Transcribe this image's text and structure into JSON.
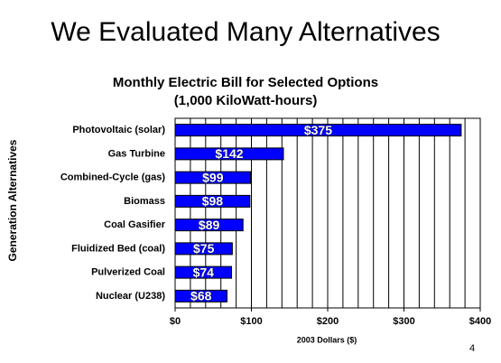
{
  "slide_title": "We Evaluated Many Alternatives",
  "page_number": "4",
  "chart_data": {
    "type": "hbar",
    "title": "Monthly Electric Bill for Selected Options",
    "subtitle": "(1,000 KiloWatt-hours)",
    "x_label": "2003 Dollars ($)",
    "y_label": "Generation Alternatives",
    "categories": [
      "Photovoltaic (solar)",
      "Gas Turbine",
      "Combined-Cycle (gas)",
      "Biomass",
      "Coal Gasifier",
      "Fluidized Bed (coal)",
      "Pulverized Coal",
      "Nuclear (U238)"
    ],
    "values": [
      375,
      142,
      99,
      98,
      89,
      75,
      74,
      68
    ],
    "value_labels": [
      "$375",
      "$142",
      "$99",
      "$98",
      "$89",
      "$75",
      "$74",
      "$68"
    ],
    "color": "#0000ff",
    "xlim": [
      0,
      400
    ],
    "xticks": [
      {
        "value": 0,
        "label": "$0"
      },
      {
        "value": 100,
        "label": "$100"
      },
      {
        "value": 200,
        "label": "$200"
      },
      {
        "value": 300,
        "label": "$300"
      },
      {
        "value": 400,
        "label": "$400"
      }
    ],
    "minor_xticks": [
      20,
      40,
      60,
      80,
      120,
      140,
      160,
      180,
      220,
      240,
      260,
      280,
      320,
      340,
      360,
      380
    ],
    "grid": true
  }
}
